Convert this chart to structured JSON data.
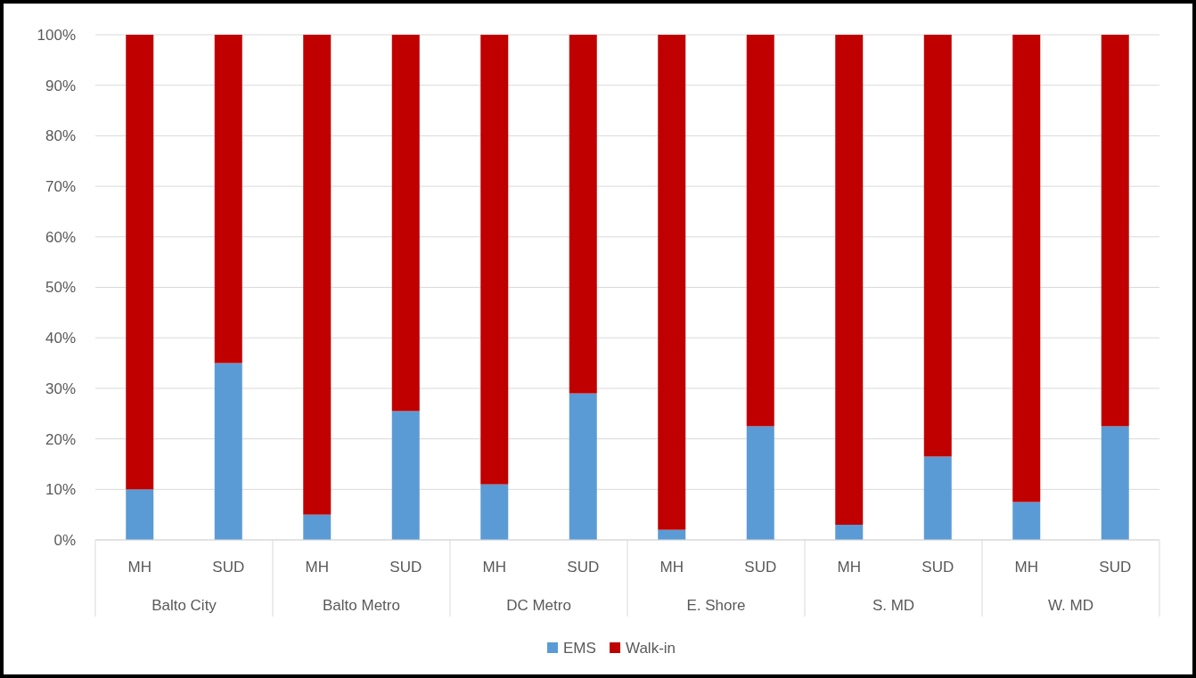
{
  "chart_data": {
    "type": "bar",
    "stacked": true,
    "categories": [
      "MH",
      "SUD",
      "MH",
      "SUD",
      "MH",
      "SUD",
      "MH",
      "SUD",
      "MH",
      "SUD",
      "MH",
      "SUD"
    ],
    "series": [
      {
        "name": "EMS",
        "color": "#5b9bd5",
        "values": [
          10,
          35,
          5,
          25.5,
          11,
          29,
          2,
          22.5,
          3,
          16.5,
          7.5,
          22.5
        ]
      },
      {
        "name": "Walk-in",
        "color": "#c00000",
        "values": [
          90,
          65,
          95,
          74.5,
          89,
          71,
          98,
          77.5,
          97,
          83.5,
          92.5,
          77.5
        ]
      }
    ],
    "annotations": [
      "Balto City",
      "Balto Metro",
      "DC Metro",
      "E. Shore",
      "S. MD",
      "W. MD"
    ],
    "ylim": [
      0,
      100
    ],
    "yticks": [
      {
        "value": 0,
        "label": "0%"
      },
      {
        "value": 10,
        "label": "10%"
      },
      {
        "value": 20,
        "label": "20%"
      },
      {
        "value": 30,
        "label": "30%"
      },
      {
        "value": 40,
        "label": "40%"
      },
      {
        "value": 50,
        "label": "50%"
      },
      {
        "value": 60,
        "label": "60%"
      },
      {
        "value": 70,
        "label": "70%"
      },
      {
        "value": 80,
        "label": "80%"
      },
      {
        "value": 90,
        "label": "90%"
      },
      {
        "value": 100,
        "label": "100%"
      }
    ],
    "grid": "y",
    "legend": "bottom"
  }
}
